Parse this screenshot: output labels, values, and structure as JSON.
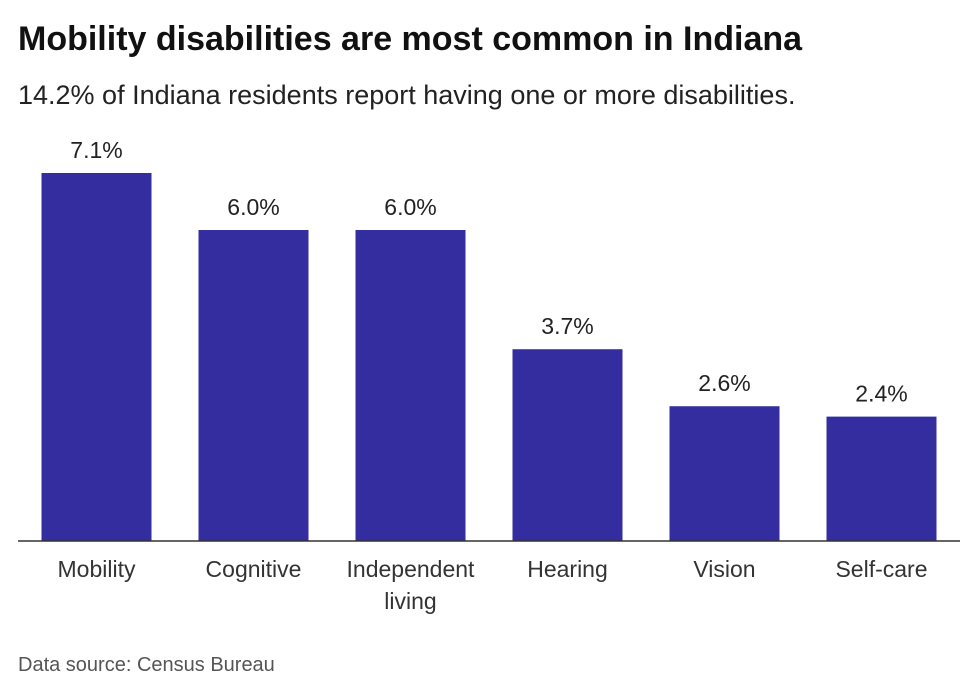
{
  "chart_data": {
    "type": "bar",
    "title": "Mobility disabilities are most common in Indiana",
    "subtitle": "14.2% of Indiana residents report having one or more disabilities.",
    "categories": [
      "Mobility",
      "Cognitive",
      "Independent living",
      "Hearing",
      "Vision",
      "Self-care"
    ],
    "values": [
      7.1,
      6.0,
      6.0,
      3.7,
      2.6,
      2.4
    ],
    "data_labels": [
      "7.1%",
      "6.0%",
      "6.0%",
      "3.7%",
      "2.6%",
      "2.4%"
    ],
    "unit": "%",
    "xlabel": "",
    "ylabel": "",
    "ylim": [
      0,
      7.1
    ],
    "grid": false,
    "bar_color": "#332d9f"
  },
  "source": "Data source: Census Bureau"
}
